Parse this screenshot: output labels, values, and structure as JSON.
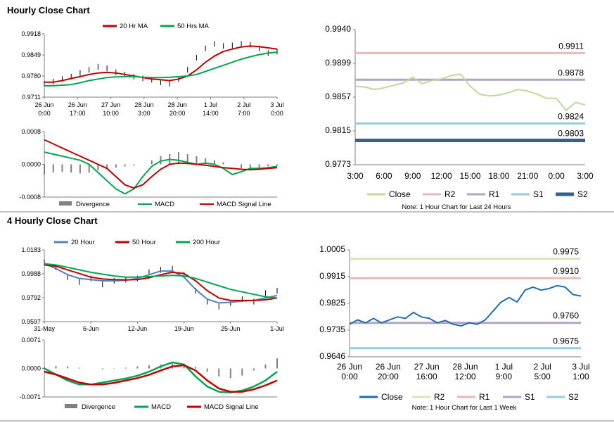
{
  "sections": {
    "hourly_title": "Hourly Close Chart",
    "four_hourly_title": "4 Hourly Close Chart"
  },
  "colors": {
    "ma20": "#c00000",
    "ma50": "#00a650",
    "ma20_4h": "#4f81bd",
    "price": "#000000",
    "divergence": "#808080",
    "macd": "#00a650",
    "signal": "#c00000",
    "close_1h": "#c3d69b",
    "r2": "#e6b9b8",
    "r1": "#b3a2c7",
    "s1": "#93cddd",
    "s2": "#376092",
    "close_4h": "#1f6eb0",
    "r2_4h": "#d7e4bd",
    "r1_4h": "#e6b9b8",
    "s1_4h": "#b3a2c7",
    "s2_4h": "#93cddd"
  },
  "chart_data": [
    {
      "id": "hourly_price",
      "type": "line",
      "legend": [
        "20 Hr MA",
        "50 Hrs MA"
      ],
      "y_ticks": [
        "0.9918",
        "0.9849",
        "0.9780",
        "0.9711"
      ],
      "ylim": [
        0.9711,
        0.9918
      ],
      "x_ticks": [
        [
          "26 Jun",
          "0:00"
        ],
        [
          "26 Jun",
          "17:00"
        ],
        [
          "27 Jun",
          "10:00"
        ],
        [
          "28 Jun",
          "3:00"
        ],
        [
          "28 Jun",
          "20:00"
        ],
        [
          "1 Jul",
          "14:00"
        ],
        [
          "2 Jul",
          "7:00"
        ],
        [
          "3 Jul",
          "0:00"
        ]
      ],
      "series": [
        {
          "name": "Price",
          "values": [
            0.9755,
            0.9762,
            0.977,
            0.9778,
            0.979,
            0.98,
            0.981,
            0.9805,
            0.9792,
            0.9785,
            0.9778,
            0.9772,
            0.9768,
            0.976,
            0.9755,
            0.977,
            0.98,
            0.984,
            0.987,
            0.9885,
            0.9878,
            0.988,
            0.9885,
            0.9882,
            0.987,
            0.9855,
            0.986
          ]
        },
        {
          "name": "20 Hr MA",
          "values": [
            0.976,
            0.976,
            0.9765,
            0.9772,
            0.9778,
            0.9785,
            0.979,
            0.9792,
            0.979,
            0.9785,
            0.978,
            0.9775,
            0.977,
            0.9768,
            0.9765,
            0.977,
            0.978,
            0.98,
            0.9825,
            0.9845,
            0.986,
            0.9868,
            0.9875,
            0.9878,
            0.9876,
            0.9872,
            0.9868
          ]
        },
        {
          "name": "50 Hrs MA",
          "values": [
            0.9748,
            0.9748,
            0.975,
            0.9752,
            0.9758,
            0.9765,
            0.977,
            0.9775,
            0.9777,
            0.9778,
            0.9778,
            0.9776,
            0.9775,
            0.9775,
            0.9776,
            0.9778,
            0.978,
            0.9785,
            0.9795,
            0.9805,
            0.9815,
            0.9825,
            0.9835,
            0.9843,
            0.985,
            0.9855,
            0.9858
          ]
        }
      ]
    },
    {
      "id": "hourly_macd",
      "type": "line",
      "legend": [
        "Divergence",
        "MACD",
        "MACD Signal Line"
      ],
      "y_ticks": [
        "0.0008",
        "0.0000",
        "-0.0008"
      ],
      "ylim": [
        -0.0008,
        0.0008
      ],
      "series": [
        {
          "name": "Divergence",
          "values": [
            -0.00025,
            -0.0002,
            -0.00018,
            -0.0002,
            -0.00022,
            -0.0002,
            -0.00015,
            -0.0001,
            -8e-05,
            -5e-05,
            -3e-05,
            0.0,
            0.0001,
            0.0002,
            0.00025,
            0.0003,
            0.00025,
            0.0002,
            0.00015,
            0.0001,
            5e-05,
            0.0,
            -0.0001,
            -0.00015,
            -0.0001,
            -5e-05,
            -3e-05
          ]
        },
        {
          "name": "MACD",
          "values": [
            0.0003,
            0.00025,
            0.0002,
            0.00015,
            0.0001,
            0.0,
            -0.0002,
            -0.0004,
            -0.0006,
            -0.00072,
            -0.0006,
            -0.0003,
            -5e-05,
            8e-05,
            0.00012,
            0.0001,
            5e-05,
            0.0,
            3e-05,
            0.0,
            -0.0001,
            -0.00025,
            -0.00018,
            -0.0001,
            -0.0001,
            -8e-05,
            -5e-05
          ]
        },
        {
          "name": "MACD Signal Line",
          "values": [
            0.0006,
            0.0005,
            0.0004,
            0.0003,
            0.0002,
            0.0001,
            0.0,
            -0.0001,
            -0.0003,
            -0.0005,
            -0.00058,
            -0.0005,
            -0.0003,
            -0.00012,
            0.0,
            3e-05,
            2e-05,
            0.0,
            -2e-05,
            -5e-05,
            -8e-05,
            -0.0001,
            -0.00012,
            -0.00013,
            -0.00012,
            -0.0001,
            -8e-05
          ]
        }
      ]
    },
    {
      "id": "hourly_levels",
      "type": "line",
      "note": "Note: 1 Hour Chart for Last 24 Hours",
      "y_ticks": [
        "0.9940",
        "0.9899",
        "0.9857",
        "0.9815",
        "0.9773"
      ],
      "ylim": [
        0.9773,
        0.994
      ],
      "x_ticks": [
        "3:00",
        "6:00",
        "9:00",
        "12:00",
        "15:00",
        "18:00",
        "21:00",
        "0:00",
        "3:00"
      ],
      "legend": [
        "Close",
        "R2",
        "R1",
        "S1",
        "S2"
      ],
      "levels": [
        {
          "name": "R2",
          "value": 0.9911,
          "label": "0.9911"
        },
        {
          "name": "R1",
          "value": 0.9878,
          "label": "0.9878"
        },
        {
          "name": "S1",
          "value": 0.9824,
          "label": "0.9824"
        },
        {
          "name": "S2",
          "value": 0.9803,
          "label": "0.9803"
        }
      ],
      "close": [
        0.987,
        0.9869,
        0.9866,
        0.9868,
        0.9871,
        0.9874,
        0.9881,
        0.9873,
        0.9877,
        0.9879,
        0.9883,
        0.9885,
        0.987,
        0.986,
        0.9858,
        0.9859,
        0.9862,
        0.9866,
        0.9864,
        0.986,
        0.9855,
        0.9855,
        0.984,
        0.985,
        0.9847
      ]
    },
    {
      "id": "four_hourly_price",
      "type": "line",
      "legend": [
        "20 Hour",
        "50 Hour",
        "200 Hour"
      ],
      "y_ticks": [
        "1.0183",
        "0.9988",
        "0.9792",
        "0.9597"
      ],
      "ylim": [
        0.9597,
        1.0183
      ],
      "x_ticks": [
        "31-May",
        "6-Jun",
        "12-Jun",
        "19-Jun",
        "25-Jun",
        "1-Jul"
      ],
      "series": [
        {
          "name": "Price",
          "values": [
            1.008,
            1.004,
            0.996,
            0.992,
            0.995,
            0.99,
            0.993,
            0.994,
            0.995,
            1.0,
            1.002,
            1.003,
            0.998,
            0.985,
            0.976,
            0.972,
            0.975,
            0.978,
            0.976,
            0.983,
            0.985
          ]
        },
        {
          "name": "20 Hour",
          "values": [
            1.007,
            1.003,
            0.998,
            0.995,
            0.994,
            0.993,
            0.993,
            0.9935,
            0.995,
            0.998,
            1.001,
            1.001,
            0.996,
            0.986,
            0.978,
            0.975,
            0.9755,
            0.9765,
            0.977,
            0.979,
            0.981
          ]
        },
        {
          "name": "50 Hour",
          "values": [
            1.006,
            1.005,
            1.002,
            0.999,
            0.996,
            0.9945,
            0.994,
            0.9938,
            0.994,
            0.9955,
            0.998,
            1.0,
            0.999,
            0.993,
            0.985,
            0.979,
            0.977,
            0.977,
            0.977,
            0.9775,
            0.979
          ]
        },
        {
          "name": "200 Hour",
          "values": [
            1.007,
            1.006,
            1.004,
            1.002,
            1.0,
            0.9985,
            0.997,
            0.996,
            0.996,
            0.9965,
            0.997,
            0.9975,
            0.997,
            0.995,
            0.992,
            0.989,
            0.986,
            0.984,
            0.982,
            0.98,
            0.979
          ]
        }
      ]
    },
    {
      "id": "four_hourly_macd",
      "type": "line",
      "legend": [
        "Divergence",
        "MACD",
        "MACD Signal Line"
      ],
      "y_ticks": [
        "0.0071",
        "0.0000",
        "-0.0071"
      ],
      "ylim": [
        -0.0071,
        0.0071
      ],
      "series": [
        {
          "name": "Divergence",
          "values": [
            0.0004,
            0.0006,
            0.0005,
            0.0002,
            0.0,
            -0.0002,
            -0.0001,
            0.0002,
            0.0005,
            0.0008,
            0.001,
            0.0012,
            0.001,
            0.0004,
            -0.0008,
            -0.002,
            -0.0024,
            -0.0018,
            -0.0005,
            0.001,
            0.0025
          ]
        },
        {
          "name": "MACD",
          "values": [
            0.0,
            -0.0015,
            -0.003,
            -0.004,
            -0.004,
            -0.0035,
            -0.003,
            -0.0025,
            -0.0018,
            -0.0008,
            0.0005,
            0.0015,
            0.001,
            -0.002,
            -0.0045,
            -0.0058,
            -0.006,
            -0.0055,
            -0.0045,
            -0.003,
            -0.0008
          ]
        },
        {
          "name": "MACD Signal Line",
          "values": [
            -0.0008,
            -0.0015,
            -0.0025,
            -0.0035,
            -0.004,
            -0.004,
            -0.0036,
            -0.003,
            -0.0024,
            -0.0016,
            -0.0005,
            0.0005,
            0.0008,
            -0.0005,
            -0.003,
            -0.005,
            -0.0058,
            -0.0058,
            -0.0052,
            -0.0042,
            -0.003
          ]
        }
      ]
    },
    {
      "id": "four_hourly_levels",
      "type": "line",
      "note": "Note: 1 Hour Chart for Last 1 Week",
      "y_ticks": [
        "1.0005",
        "0.9915",
        "0.9825",
        "0.9735",
        "0.9646"
      ],
      "ylim": [
        0.9646,
        1.0005
      ],
      "x_ticks": [
        [
          "26 Jun",
          "0:00"
        ],
        [
          "26 Jun",
          "20:00"
        ],
        [
          "27 Jun",
          "16:00"
        ],
        [
          "28 Jun",
          "12:00"
        ],
        [
          "1 Jul",
          "9:00"
        ],
        [
          "2 Jul",
          "5:00"
        ],
        [
          "3 Jul",
          "1:00"
        ]
      ],
      "legend": [
        "Close",
        "R2",
        "R1",
        "S1",
        "S2"
      ],
      "levels": [
        {
          "name": "R2",
          "value": 0.9975,
          "label": "0.9975"
        },
        {
          "name": "R1",
          "value": 0.991,
          "label": "0.9910"
        },
        {
          "name": "S1",
          "value": 0.976,
          "label": "0.9760"
        },
        {
          "name": "S2",
          "value": 0.9675,
          "label": "0.9675"
        }
      ],
      "close": [
        0.9755,
        0.977,
        0.976,
        0.9775,
        0.976,
        0.977,
        0.978,
        0.9775,
        0.9795,
        0.978,
        0.9775,
        0.976,
        0.9768,
        0.9755,
        0.975,
        0.976,
        0.9755,
        0.977,
        0.98,
        0.983,
        0.9845,
        0.983,
        0.987,
        0.988,
        0.987,
        0.9875,
        0.9885,
        0.988,
        0.9855,
        0.985
      ]
    }
  ]
}
